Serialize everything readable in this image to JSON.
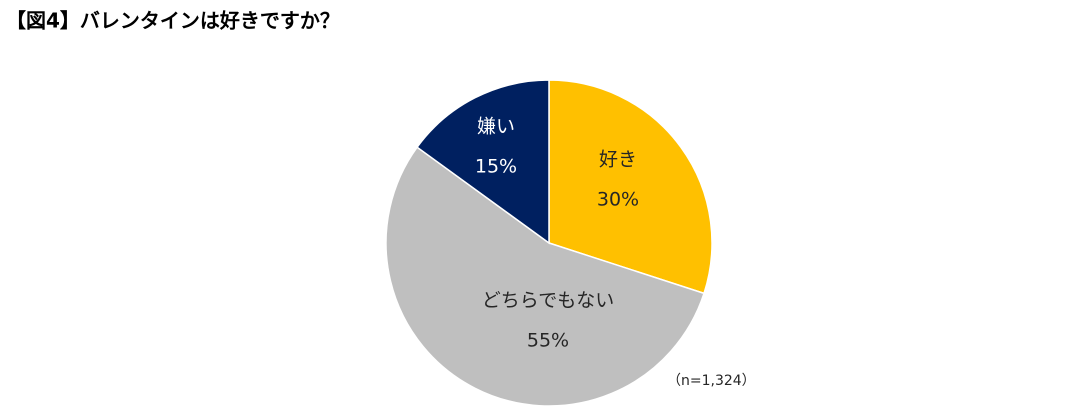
{
  "chart_data": {
    "type": "pie",
    "title": "【図4】バレンタインは好きですか？",
    "categories": [
      "好き",
      "どちらでもない",
      "嫌い"
    ],
    "values": [
      30,
      55,
      15
    ],
    "value_labels": [
      "30%",
      "55%",
      "15%"
    ],
    "colors": [
      "#FFC000",
      "#BFBFBF",
      "#002060"
    ],
    "label_colors": [
      "#262626",
      "#262626",
      "#FFFFFF"
    ],
    "note": "（n=1,324）"
  }
}
